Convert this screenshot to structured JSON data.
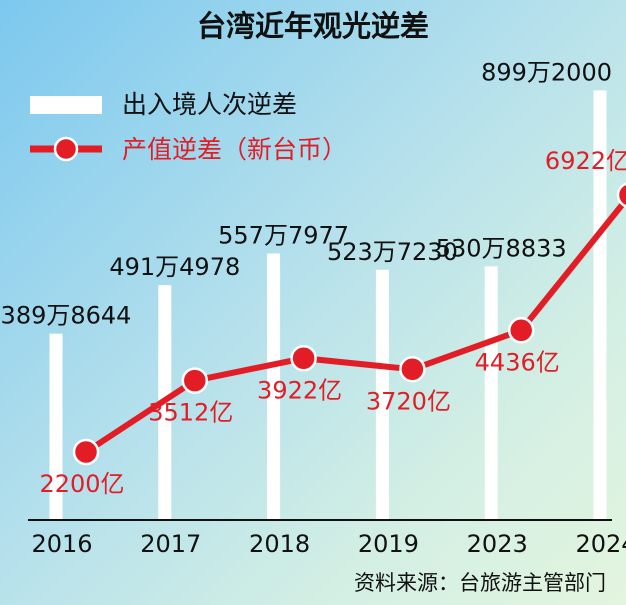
{
  "title": "台湾近年观光逆差",
  "source": "资料来源：台旅游主管部门",
  "colors": {
    "bar": "#ffffff",
    "line": "#e21d26",
    "bar_label": "#111111",
    "line_label": "#e21d26"
  },
  "chart_data": {
    "type": "bar+line",
    "title": "台湾近年观光逆差",
    "categories": [
      "2016",
      "2017",
      "2018",
      "2019",
      "2023",
      "2024"
    ],
    "series": [
      {
        "name": "出入境人次逆差",
        "type": "bar",
        "values": [
          3898644,
          4914978,
          5577977,
          5237230,
          5308833,
          8992000
        ],
        "labels": [
          "389万8644",
          "491万4978",
          "557万7977",
          "523万7230",
          "530万8833",
          "899万2000"
        ]
      },
      {
        "name": "产值逆差（新台币）",
        "type": "line",
        "values": [
          2200,
          3512,
          3922,
          3720,
          4436,
          6922
        ],
        "labels": [
          "2200亿",
          "3512亿",
          "3922亿",
          "3720亿",
          "4436亿",
          "6922亿"
        ]
      }
    ],
    "legend_position": "top-left",
    "grid": false
  }
}
